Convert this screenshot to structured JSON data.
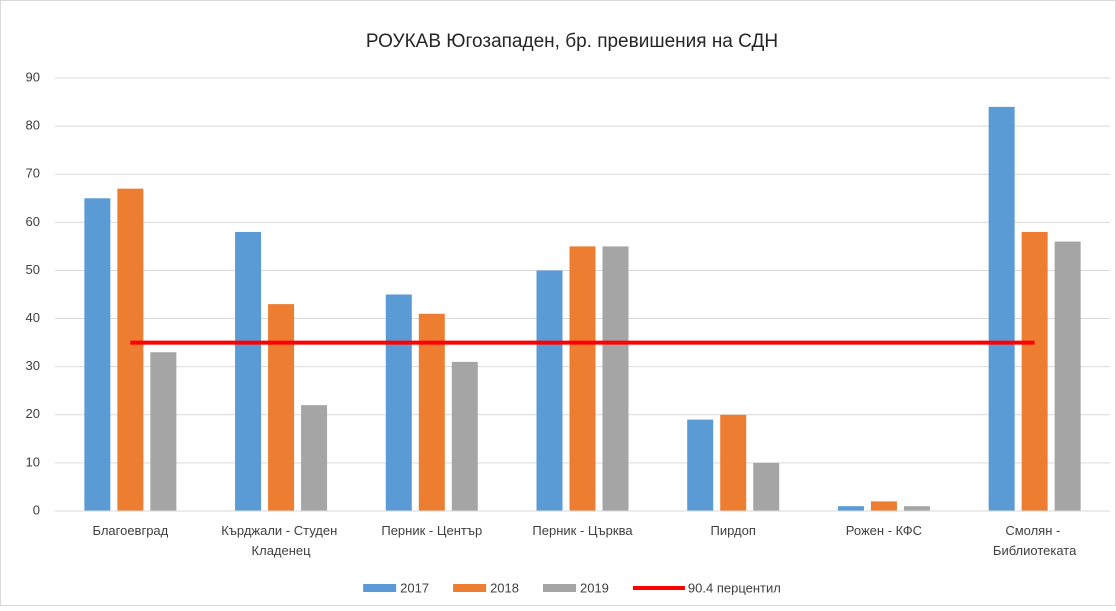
{
  "chart_data": {
    "type": "bar",
    "title": "РОУКАВ Югозападен, бр. превишения на СДН",
    "categories": [
      "Благоевград",
      "Кърджали - Студен Кладенец",
      "Перник - Център",
      "Перник - Църква",
      "Пирдоп",
      "Рожен - КФС",
      "Смолян - Библиотеката"
    ],
    "series": [
      {
        "name": "2017",
        "color": "#5b9bd5",
        "values": [
          65,
          58,
          45,
          50,
          19,
          1,
          84
        ]
      },
      {
        "name": "2018",
        "color": "#ed7d31",
        "values": [
          67,
          43,
          41,
          55,
          20,
          2,
          58
        ]
      },
      {
        "name": "2019",
        "color": "#a5a5a5",
        "values": [
          33,
          22,
          31,
          55,
          10,
          1,
          56
        ]
      },
      {
        "name": "90.4 перцентил",
        "color": "#ff0000",
        "type": "line",
        "values": [
          35,
          35,
          35,
          35,
          35,
          35,
          35
        ]
      }
    ],
    "ylim": [
      0,
      90
    ],
    "yticks": [
      0,
      10,
      20,
      30,
      40,
      50,
      60,
      70,
      80,
      90
    ],
    "grid": true,
    "legend": "bottom"
  }
}
